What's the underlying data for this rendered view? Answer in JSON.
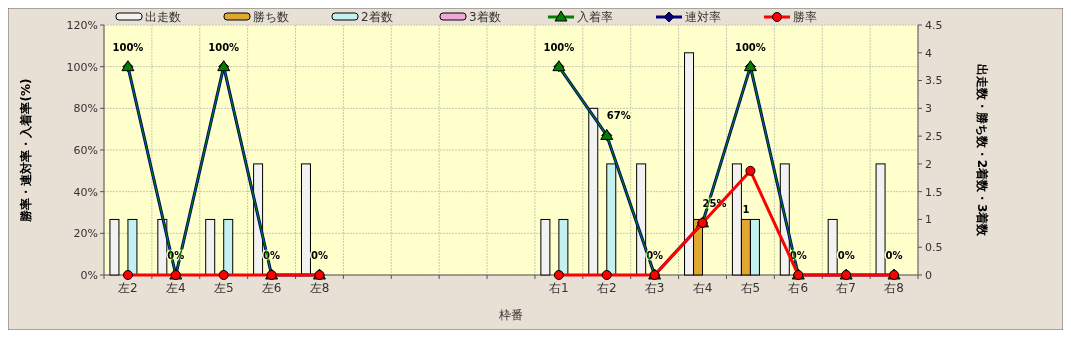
{
  "chart_data": {
    "type": "bar",
    "xlabel": "枠番",
    "ylabel": "勝率・連対率・入着率(%)",
    "y2label": "出走数・勝ち数・2着数・3着数",
    "categories": [
      "左2",
      "左4",
      "左5",
      "左6",
      "左8",
      null,
      null,
      null,
      null,
      "右1",
      "右2",
      "右3",
      "右4",
      "右5",
      "右6",
      "右7",
      "右8"
    ],
    "series": [
      {
        "name": "出走数",
        "axis": "y2",
        "color": "#f2f2f2",
        "values": [
          1,
          1,
          1,
          2,
          2,
          null,
          null,
          null,
          null,
          1,
          3,
          2,
          4,
          2,
          2,
          1,
          2
        ]
      },
      {
        "name": "勝ち数",
        "axis": "y2",
        "color": "#e0a830",
        "values": [
          0,
          0,
          0,
          0,
          0,
          null,
          null,
          null,
          null,
          0,
          0,
          0,
          1,
          1,
          0,
          0,
          0
        ],
        "value_labels": [
          null,
          null,
          null,
          null,
          null,
          null,
          null,
          null,
          null,
          null,
          null,
          null,
          null,
          "1",
          null,
          null,
          null
        ]
      },
      {
        "name": "2着数",
        "axis": "y2",
        "color": "#c4f0f0",
        "values": [
          1,
          0,
          1,
          0,
          0,
          null,
          null,
          null,
          null,
          1,
          2,
          0,
          0,
          1,
          0,
          0,
          0
        ]
      },
      {
        "name": "3着数",
        "axis": "y2",
        "color": "#f0a8d8",
        "values": [
          0,
          0,
          0,
          0,
          0,
          null,
          null,
          null,
          null,
          0,
          0,
          0,
          0,
          0,
          0,
          0,
          0
        ]
      },
      {
        "name": "入着率",
        "type": "line",
        "color": "#008000",
        "marker": "triangle",
        "values": [
          100,
          0,
          100,
          0,
          0,
          null,
          null,
          null,
          null,
          100,
          67,
          0,
          25,
          100,
          0,
          0,
          0
        ]
      },
      {
        "name": "連対率",
        "type": "line",
        "color": "#000080",
        "marker": "diamond",
        "values": [
          100,
          0,
          100,
          0,
          0,
          null,
          null,
          null,
          null,
          100,
          67,
          0,
          25,
          100,
          0,
          0,
          0
        ],
        "value_labels": [
          "100%",
          "0%",
          "100%",
          "0%",
          "0%",
          null,
          null,
          null,
          null,
          "100%",
          "67%",
          "0%",
          "25%",
          "100%",
          "0%",
          "0%",
          "0%"
        ]
      },
      {
        "name": "勝率",
        "type": "line",
        "color": "#ff0000",
        "marker": "circle",
        "values": [
          0,
          0,
          0,
          0,
          0,
          null,
          null,
          null,
          null,
          0,
          0,
          0,
          25,
          50,
          0,
          0,
          0
        ]
      }
    ],
    "ylim": [
      0,
      120
    ],
    "yticks": [
      {
        "value": 0,
        "label": "0%"
      },
      {
        "value": 20,
        "label": "20%"
      },
      {
        "value": 40,
        "label": "40%"
      },
      {
        "value": 60,
        "label": "60%"
      },
      {
        "value": 80,
        "label": "80%"
      },
      {
        "value": 100,
        "label": "100%"
      },
      {
        "value": 120,
        "label": "120%"
      }
    ],
    "y2lim": [
      0,
      4.5
    ],
    "y2ticks": [
      0,
      0.5,
      1,
      1.5,
      2,
      2.5,
      3,
      3.5,
      4,
      4.5
    ],
    "grid": true,
    "legend": "top"
  }
}
